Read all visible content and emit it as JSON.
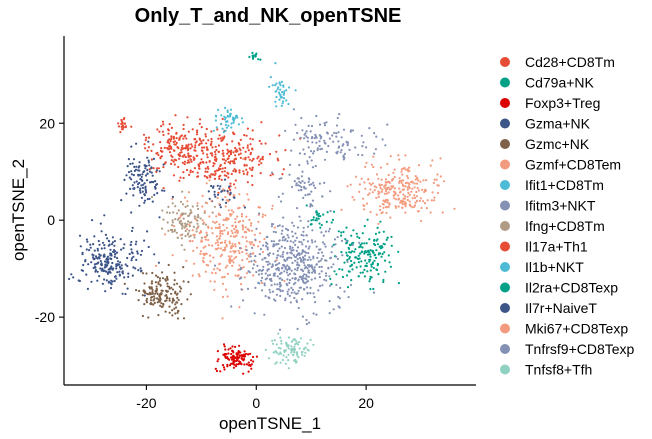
{
  "chart_data": {
    "type": "scatter",
    "title": "Only_T_and_NK_openTSNE",
    "xlabel": "openTSNE_1",
    "ylabel": "openTSNE_2",
    "xlim": [
      -35,
      40
    ],
    "ylim": [
      -34,
      38
    ],
    "xticks": [
      -20,
      0,
      20
    ],
    "yticks": [
      -20,
      0,
      20
    ],
    "grid": false,
    "legend_position": "right",
    "series": [
      {
        "name": "Cd28+CD8Tm",
        "color": "#E64B35",
        "clusters": [
          {
            "cx": -7,
            "cy": 13,
            "sx": 6,
            "sy": 3.5,
            "n": 300
          },
          {
            "cx": -15,
            "cy": 15,
            "sx": 3.5,
            "sy": 3,
            "n": 120
          }
        ]
      },
      {
        "name": "Cd79a+NK",
        "color": "#00A087",
        "clusters": [
          {
            "cx": 19.5,
            "cy": -7,
            "sx": 3.2,
            "sy": 3.5,
            "n": 170
          },
          {
            "cx": -0.3,
            "cy": 33.7,
            "sx": 0.5,
            "sy": 0.6,
            "n": 15
          }
        ]
      },
      {
        "name": "Foxp3+Treg",
        "color": "#DC0000",
        "clusters": [
          {
            "cx": -3.5,
            "cy": -28.5,
            "sx": 2,
            "sy": 1.3,
            "n": 120
          }
        ]
      },
      {
        "name": "Gzma+NK",
        "color": "#3C5488",
        "clusters": [
          {
            "cx": -27,
            "cy": -8.5,
            "sx": 3.4,
            "sy": 3.6,
            "n": 220
          },
          {
            "cx": -20.5,
            "cy": 8.5,
            "sx": 2,
            "sy": 3.2,
            "n": 110
          }
        ]
      },
      {
        "name": "Gzmc+NK",
        "color": "#7E6148",
        "clusters": [
          {
            "cx": -17,
            "cy": -15.5,
            "sx": 2.6,
            "sy": 2.6,
            "n": 160
          }
        ]
      },
      {
        "name": "Gzmf+CD8Tem",
        "color": "#F39B7F",
        "clusters": [
          {
            "cx": 26,
            "cy": 6,
            "sx": 4.5,
            "sy": 3.5,
            "n": 250
          }
        ]
      },
      {
        "name": "Ifit1+CD8Tm",
        "color": "#4DBBD5",
        "clusters": [
          {
            "cx": -5,
            "cy": 20.5,
            "sx": 1.6,
            "sy": 1.8,
            "n": 45
          }
        ]
      },
      {
        "name": "Ifitm3+NKT",
        "color": "#8491B4",
        "clusters": [
          {
            "cx": 13.5,
            "cy": 16.5,
            "sx": 5,
            "sy": 2.3,
            "n": 110
          },
          {
            "cx": 8.5,
            "cy": 6.5,
            "sx": 2.5,
            "sy": 3,
            "n": 60
          }
        ]
      },
      {
        "name": "Ifng+CD8Tm",
        "color": "#B09C85",
        "clusters": [
          {
            "cx": -13,
            "cy": 0,
            "sx": 2.6,
            "sy": 2.5,
            "n": 100
          }
        ]
      },
      {
        "name": "Il17a+Th1",
        "color": "#E64B35",
        "clusters": [
          {
            "cx": -24.3,
            "cy": 19.5,
            "sx": 0.5,
            "sy": 0.8,
            "n": 20
          }
        ]
      },
      {
        "name": "Il1b+NKT",
        "color": "#4DBBD5",
        "clusters": [
          {
            "cx": 4.5,
            "cy": 26.5,
            "sx": 1,
            "sy": 2,
            "n": 40
          }
        ]
      },
      {
        "name": "Il2ra+CD8Texp",
        "color": "#00A087",
        "clusters": [
          {
            "cx": 11.5,
            "cy": 0.5,
            "sx": 1.3,
            "sy": 1.2,
            "n": 25
          }
        ]
      },
      {
        "name": "Il7r+NaiveT",
        "color": "#3C5488",
        "clusters": [
          {
            "cx": -6.5,
            "cy": 5.5,
            "sx": 2,
            "sy": 1.7,
            "n": 30
          }
        ]
      },
      {
        "name": "Mki67+CD8Texp",
        "color": "#F39B7F",
        "clusters": [
          {
            "cx": -5,
            "cy": -4.5,
            "sx": 4.5,
            "sy": 6,
            "n": 300
          }
        ]
      },
      {
        "name": "Tnfrsf9+CD8Texp",
        "color": "#8491B4",
        "clusters": [
          {
            "cx": 7,
            "cy": -9.5,
            "sx": 5,
            "sy": 5,
            "n": 450
          }
        ]
      },
      {
        "name": "Tnfsf8+Tfh",
        "color": "#91D1C2",
        "clusters": [
          {
            "cx": 6,
            "cy": -26.5,
            "sx": 2.2,
            "sy": 1.7,
            "n": 90
          }
        ]
      }
    ]
  }
}
